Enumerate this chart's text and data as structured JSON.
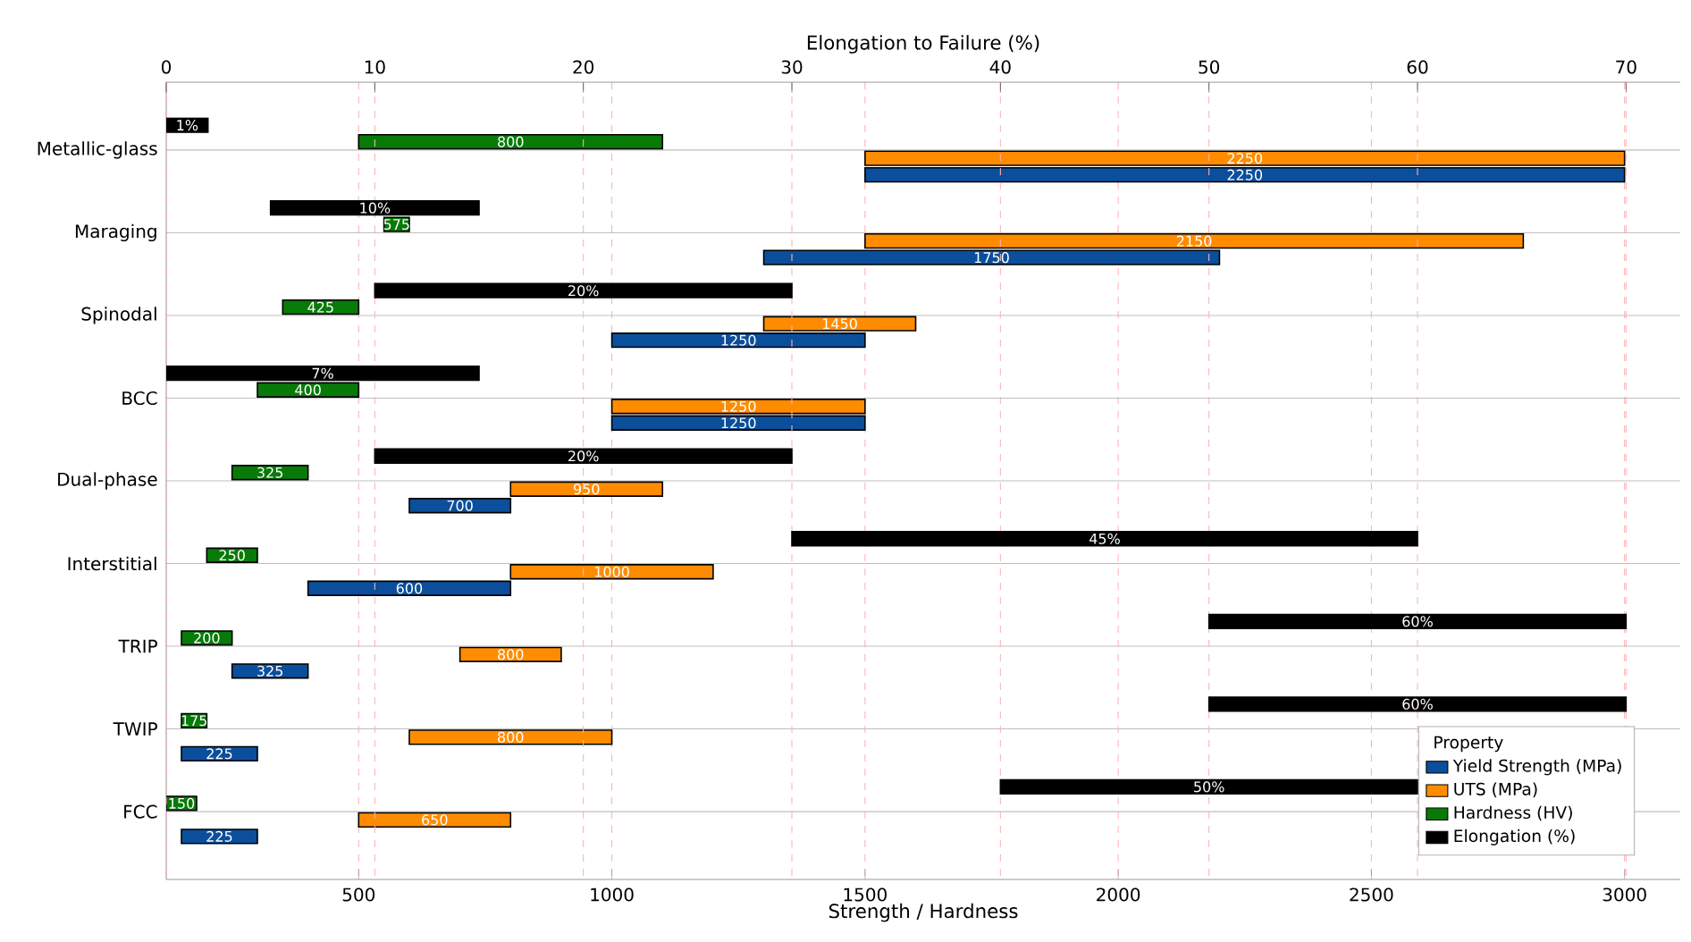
{
  "chart_data": {
    "type": "bar",
    "orientation": "horizontal",
    "xlabel": "Strength / Hardness",
    "x2label": "Elongation to Failure (%)",
    "legend_title": "Property",
    "legend": "bottom right",
    "grid": true,
    "categories": [
      "Metallic-glass",
      "Maraging",
      "Spinodal",
      "BCC",
      "Dual-phase",
      "Interstitial",
      "TRIP",
      "TWIP",
      "FCC"
    ],
    "xlim": [
      120,
      3110
    ],
    "xticks": [
      500,
      1000,
      1500,
      2000,
      2500,
      3000
    ],
    "x2lim": [
      0,
      72.6
    ],
    "x2ticks": [
      0,
      10,
      20,
      30,
      40,
      50,
      60,
      70
    ],
    "series": [
      {
        "name": "Yield Strength (MPa)",
        "color": "#0b4f9c",
        "base": [
          1500,
          1300,
          1000,
          1000,
          600,
          400,
          250,
          150,
          150
        ],
        "values": [
          1500,
          900,
          500,
          500,
          200,
          400,
          150,
          150,
          150
        ]
      },
      {
        "name": "UTS (MPa)",
        "color": "#ff8c00",
        "base": [
          1500,
          1500,
          1300,
          1000,
          800,
          800,
          700,
          600,
          500
        ],
        "values": [
          1500,
          1300,
          300,
          500,
          300,
          400,
          200,
          400,
          300
        ]
      },
      {
        "name": "Hardness (HV)",
        "color": "#087a08",
        "base": [
          500,
          550,
          350,
          300,
          250,
          200,
          150,
          150,
          120
        ],
        "values": [
          600,
          50,
          150,
          200,
          150,
          100,
          100,
          50,
          60
        ]
      },
      {
        "name": "Elongation (%)",
        "color": "#000000",
        "axis": "x2",
        "base": [
          0,
          5,
          10,
          0,
          10,
          30,
          50,
          50,
          40
        ],
        "values": [
          2,
          10,
          20,
          15,
          20,
          30,
          20,
          20,
          20
        ]
      }
    ],
    "annotations": [
      "2250",
      "1750",
      "1250",
      "1250",
      "700",
      "600",
      "325",
      "225",
      "225",
      "2250",
      "2150",
      "1450",
      "1250",
      "950",
      "1000",
      "800",
      "800",
      "650",
      "800",
      "575",
      "425",
      "400",
      "325",
      "250",
      "200",
      "175",
      "150",
      "1%",
      "10%",
      "20%",
      "7%",
      "20%",
      "45%",
      "60%",
      "60%",
      "50%"
    ]
  }
}
